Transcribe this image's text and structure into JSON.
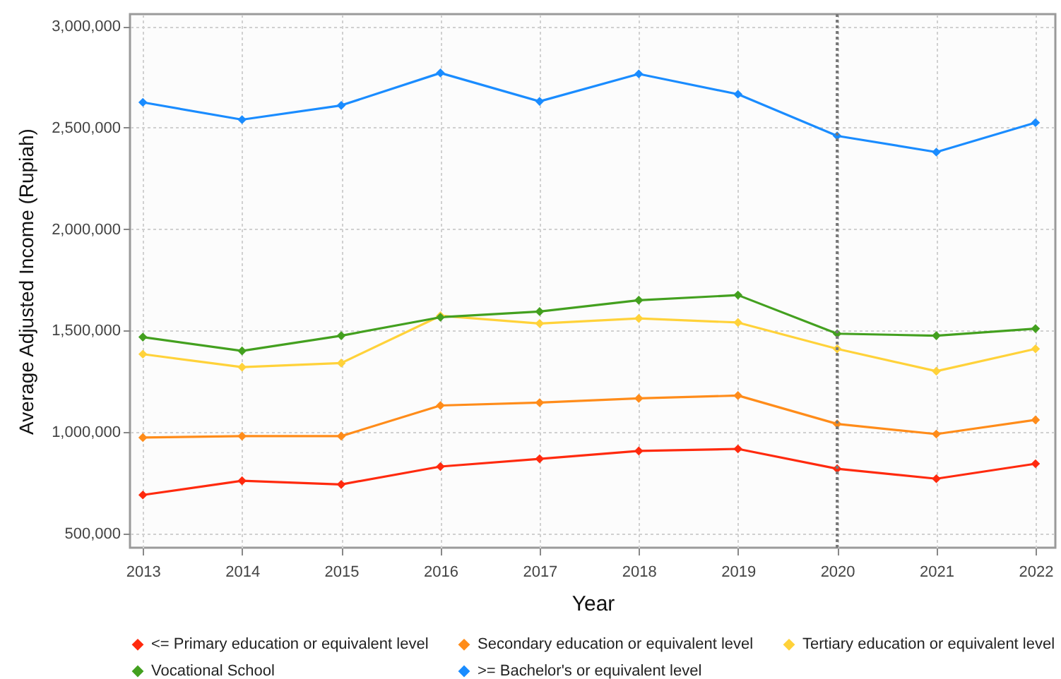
{
  "chart_data": {
    "type": "line",
    "xlabel": "Year",
    "ylabel": "Average Adjusted Income (Rupiah)",
    "x": [
      2013,
      2014,
      2015,
      2016,
      2017,
      2018,
      2019,
      2020,
      2021,
      2022
    ],
    "xlim": [
      2012.87,
      2022.2
    ],
    "xticks": [
      2013,
      2014,
      2015,
      2016,
      2017,
      2018,
      2019,
      2020,
      2021,
      2022
    ],
    "ylim": [
      430000,
      3060000
    ],
    "yticks": [
      {
        "value": 500000,
        "label": "500,000"
      },
      {
        "value": 1000000,
        "label": "1,000,000"
      },
      {
        "value": 1500000,
        "label": "1,500,000"
      },
      {
        "value": 2000000,
        "label": "2,000,000"
      },
      {
        "value": 2500000,
        "label": "2,500,000"
      },
      {
        "value": 3000000,
        "label": "3,000,000"
      }
    ],
    "grid": true,
    "legend": "bottom",
    "marker": "diamond",
    "line_style": "solid",
    "ref_lines": [
      {
        "axis": "x",
        "value": 2020,
        "color": "#777777",
        "line_style": "dotted"
      }
    ],
    "series": [
      {
        "name": "<= Primary education or equivalent level",
        "color": "#ff2a0e",
        "values": [
          690000,
          760000,
          742000,
          830000,
          868000,
          907000,
          917000,
          819000,
          770000,
          844000
        ]
      },
      {
        "name": "Secondary education or equivalent level",
        "color": "#ff8c1a",
        "values": [
          973000,
          980000,
          980000,
          1131000,
          1145000,
          1166000,
          1180000,
          1040000,
          990000,
          1060000
        ]
      },
      {
        "name": "Tertiary education or equivalent level",
        "color": "#ffd23a",
        "values": [
          1384000,
          1320000,
          1340000,
          1573000,
          1535000,
          1560000,
          1540000,
          1410000,
          1300000,
          1410000
        ]
      },
      {
        "name": "Vocational School",
        "color": "#43a01f",
        "values": [
          1468000,
          1400000,
          1475000,
          1566000,
          1594000,
          1650000,
          1675000,
          1485000,
          1475000,
          1510000
        ]
      },
      {
        "name": ">= Bachelor's or equivalent level",
        "color": "#1a8cff",
        "values": [
          2625000,
          2540000,
          2610000,
          2770000,
          2630000,
          2765000,
          2665000,
          2460000,
          2380000,
          2525000
        ]
      }
    ]
  }
}
